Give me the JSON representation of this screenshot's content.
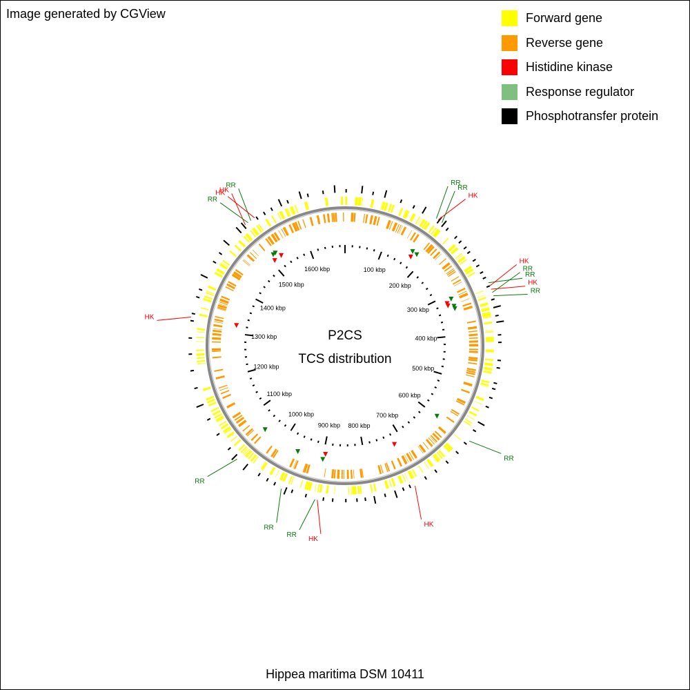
{
  "credit": "Image generated by CGView",
  "organism": "Hippea maritima DSM 10411",
  "center": {
    "title": "P2CS",
    "subtitle": "TCS distribution"
  },
  "legend": [
    {
      "label": "Forward gene",
      "color": "#ffff00"
    },
    {
      "label": "Reverse gene",
      "color": "#ff9900"
    },
    {
      "label": "Histidine kinase",
      "color": "#ff0000"
    },
    {
      "label": "Response regulator",
      "color": "#7fbf7f"
    },
    {
      "label": "Phosphotransfer protein",
      "color": "#000000"
    }
  ],
  "colors": {
    "forward": "#ffff00",
    "reverse": "#ff9900",
    "hk": "#ff0000",
    "rr": "#0a7a0a",
    "backbone": "#888888",
    "ticks": "#000000"
  },
  "genome_kbp": 1694,
  "ruler_labels": [
    "100 kbp",
    "200 kbp",
    "300 kbp",
    "400 kbp",
    "500 kbp",
    "600 kbp",
    "700 kbp",
    "800 kbp",
    "900 kbp",
    "1000 kbp",
    "1100 kbp",
    "1200 kbp",
    "1300 kbp",
    "1400 kbp",
    "1500 kbp",
    "1600 kbp"
  ],
  "callouts": [
    {
      "kbp": 168,
      "label": "RR",
      "type": "rr"
    },
    {
      "kbp": 172,
      "label": "HK",
      "type": "hk"
    },
    {
      "kbp": 180,
      "label": "RR",
      "type": "rr"
    },
    {
      "kbp": 312,
      "label": "RR",
      "type": "rr"
    },
    {
      "kbp": 318,
      "label": "HK",
      "type": "hk"
    },
    {
      "kbp": 324,
      "label": "HK",
      "type": "hk"
    },
    {
      "kbp": 330,
      "label": "RR",
      "type": "rr"
    },
    {
      "kbp": 336,
      "label": "RR",
      "type": "rr"
    },
    {
      "kbp": 600,
      "label": "RR",
      "type": "rr"
    },
    {
      "kbp": 722,
      "label": "HK",
      "type": "hk"
    },
    {
      "kbp": 895,
      "label": "HK",
      "type": "hk"
    },
    {
      "kbp": 899,
      "label": "RR",
      "type": "rr"
    },
    {
      "kbp": 960,
      "label": "RR",
      "type": "rr"
    },
    {
      "kbp": 1052,
      "label": "RR",
      "type": "rr"
    },
    {
      "kbp": 1320,
      "label": "HK",
      "type": "hk"
    },
    {
      "kbp": 1508,
      "label": "HK",
      "type": "hk"
    },
    {
      "kbp": 1514,
      "label": "RR",
      "type": "rr"
    },
    {
      "kbp": 1520,
      "label": "RR",
      "type": "rr"
    },
    {
      "kbp": 1528,
      "label": "HK",
      "type": "hk"
    }
  ]
}
